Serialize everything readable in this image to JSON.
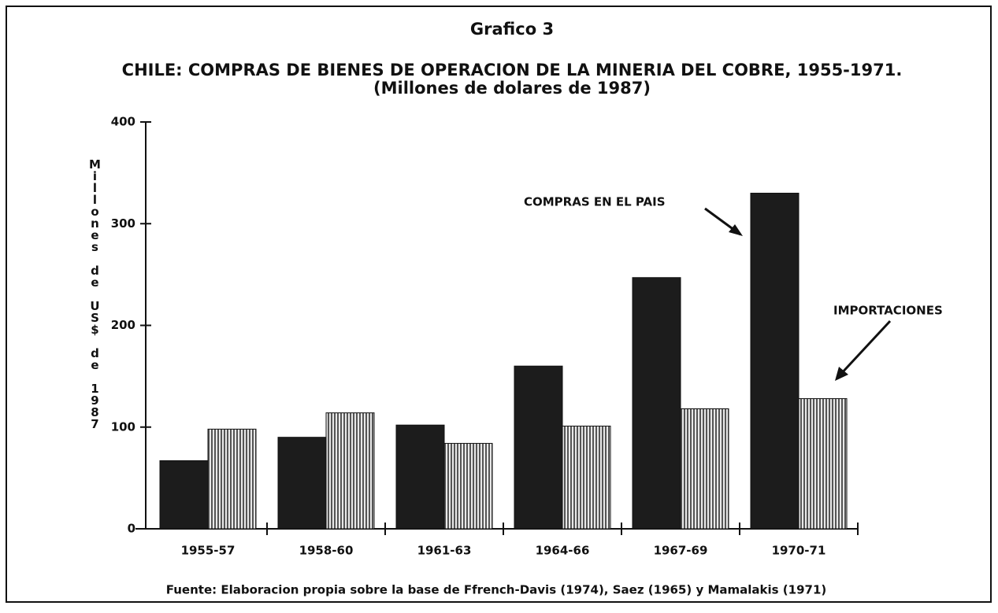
{
  "chart_data": {
    "type": "bar",
    "chart_label": "Grafico 3",
    "title": "CHILE: COMPRAS DE BIENES DE OPERACION DE  LA MINERIA DEL COBRE, 1955-1971.",
    "subtitle": "(Millones de dolares de 1987)",
    "y_label": "Millones de US$ de 1987",
    "source": "Fuente: Elaboracion propia sobre la base de Ffrench-Davis (1974), Saez (1965) y Mamalakis (1971)",
    "categories": [
      "1955-57",
      "1958-60",
      "1961-63",
      "1964-66",
      "1967-69",
      "1970-71"
    ],
    "series": [
      {
        "name": "COMPRAS EN EL PAIS",
        "color": "#1c1c1c",
        "values": [
          67,
          90,
          102,
          160,
          247,
          330
        ]
      },
      {
        "name": "IMPORTACIONES",
        "color": "#555555",
        "values": [
          98,
          114,
          84,
          101,
          118,
          128
        ]
      }
    ],
    "ylim": [
      0,
      400
    ],
    "yticks": [
      0,
      100,
      200,
      300,
      400
    ]
  }
}
